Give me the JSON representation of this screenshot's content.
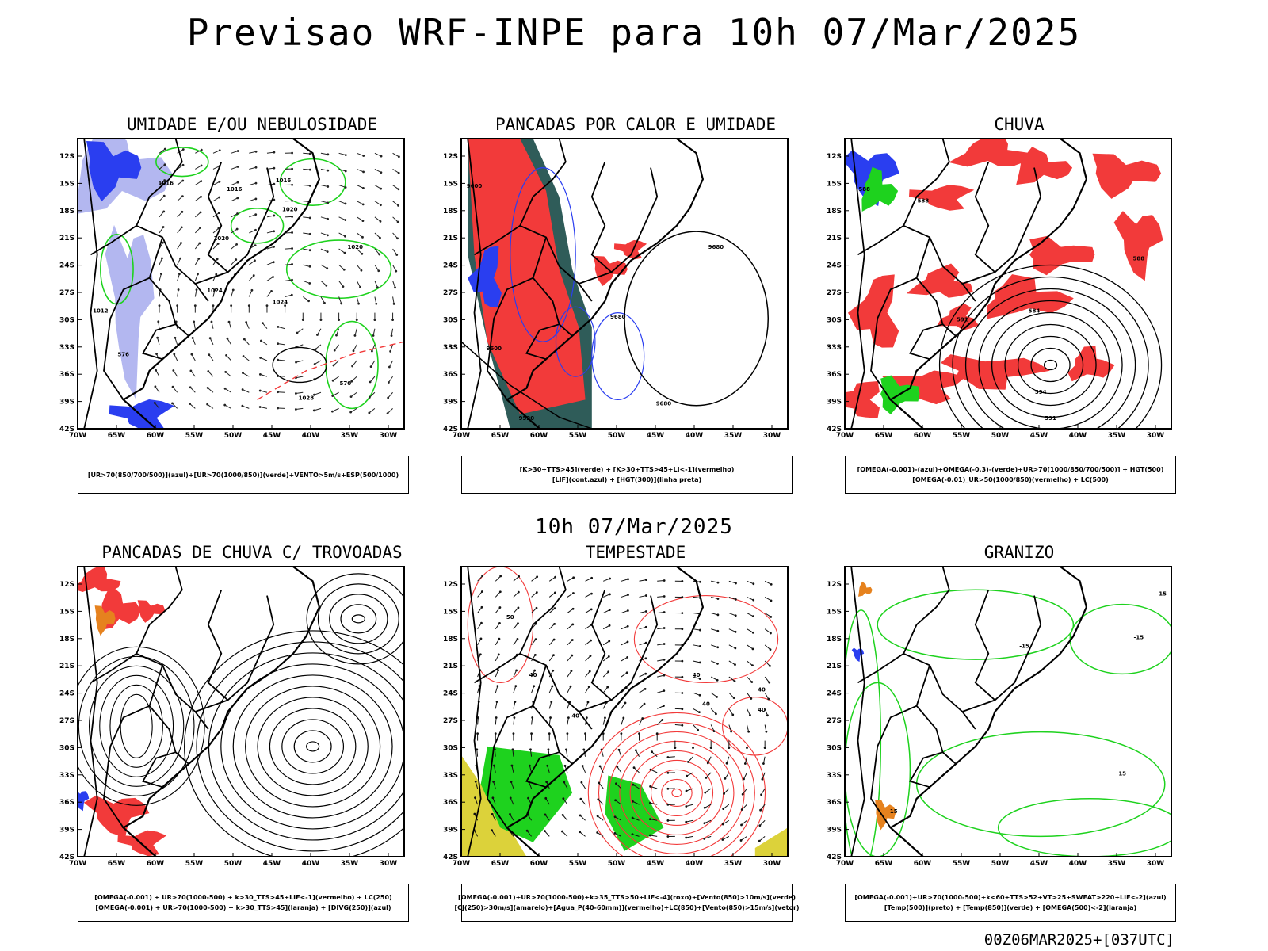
{
  "title": "Previsao WRF-INPE  para 10h 07/Mar/2025",
  "middle_title": "10h 07/Mar/2025",
  "footer": "00Z06MAR2025+[037UTC]",
  "axes": {
    "lat_labels": [
      "12S",
      "15S",
      "18S",
      "21S",
      "24S",
      "27S",
      "30S",
      "33S",
      "36S",
      "39S",
      "42S"
    ],
    "lon_labels": [
      "70W",
      "65W",
      "60W",
      "55W",
      "50W",
      "45W",
      "40W",
      "35W",
      "30W"
    ]
  },
  "colors": {
    "red": "#f23a3a",
    "green": "#1ed21e",
    "blue": "#2a3ef0",
    "lavender": "#b3b7f0",
    "darkteal": "#2f5c59",
    "yellow": "#dcd23a",
    "orange": "#e6821e"
  },
  "panels": [
    {
      "title": "UMIDADE E/OU NEBULOSIDADE",
      "legend": [
        "[UR>70(850/700/500)](azul)+[UR>70(1000/850)](verde)+VENTO>5m/s+ESP(500/1000)"
      ],
      "isolabels": [
        "1016",
        "1016",
        "1016",
        "1020",
        "1020",
        "1020",
        "1024",
        "1024",
        "1028",
        "1012",
        "576",
        "570"
      ]
    },
    {
      "title": "PANCADAS POR CALOR E UMIDADE",
      "legend": [
        "[K>30+TTS>45](verde) + [K>30+TTS>45+LI<-1](vermelho)",
        "[LIF](cont.azul) + [HGT(300)](linha preta)"
      ],
      "isolabels": [
        "9680",
        "9680",
        "9680",
        "9600",
        "9600",
        "9520"
      ]
    },
    {
      "title": "CHUVA",
      "legend": [
        "[OMEGA(-0.001)-(azul)+OMEGA(-0.3)-(verde)+UR>70(1000/850/700/500)] + HGT(500)",
        "[OMEGA(-0.01)_UR>50(1000/850)(vermelho) + LC(500)"
      ],
      "isolabels": [
        "588",
        "588",
        "591",
        "584",
        "594",
        "591",
        "588"
      ]
    },
    {
      "title": "PANCADAS DE CHUVA C/ TROVOADAS",
      "legend": [
        "[OMEGA(-0.001) + UR>70(1000-500) + k>30_TTS>45+LIF<-1](vermelho) + LC(250)",
        "[OMEGA(-0.001) + UR>70(1000-500) + k>30_TTS>45](laranja) + [DIVG(250)](azul)"
      ],
      "isolabels": []
    },
    {
      "title": "TEMPESTADE",
      "legend": [
        "[OMEGA(-0.001)+UR>70(1000-500)+k>35_TTS>50+LIF<-4](roxo)+[Vento(850)>10m/s](verde)",
        "[CJ(250)>30m/s](amarelo)+[Agua_P(40-60mm)](vermelho)+LC(850)+[Vento(850)>15m/s](vetor)"
      ],
      "isolabels": [
        "50",
        "40",
        "40",
        "40",
        "40",
        "40",
        "40"
      ]
    },
    {
      "title": "GRANIZO",
      "legend": [
        "[OMEGA(-0.001)+UR>70(1000-500)+k<60+TTS>52+VT>25+SWEAT>220+LIF<-2](azul)",
        "[Temp(500)](preto) + [Temp(850)](verde) + [OMEGA(500)<-2](laranja)"
      ],
      "isolabels": [
        "-15",
        "-15",
        "-15",
        "15",
        "15"
      ]
    }
  ]
}
